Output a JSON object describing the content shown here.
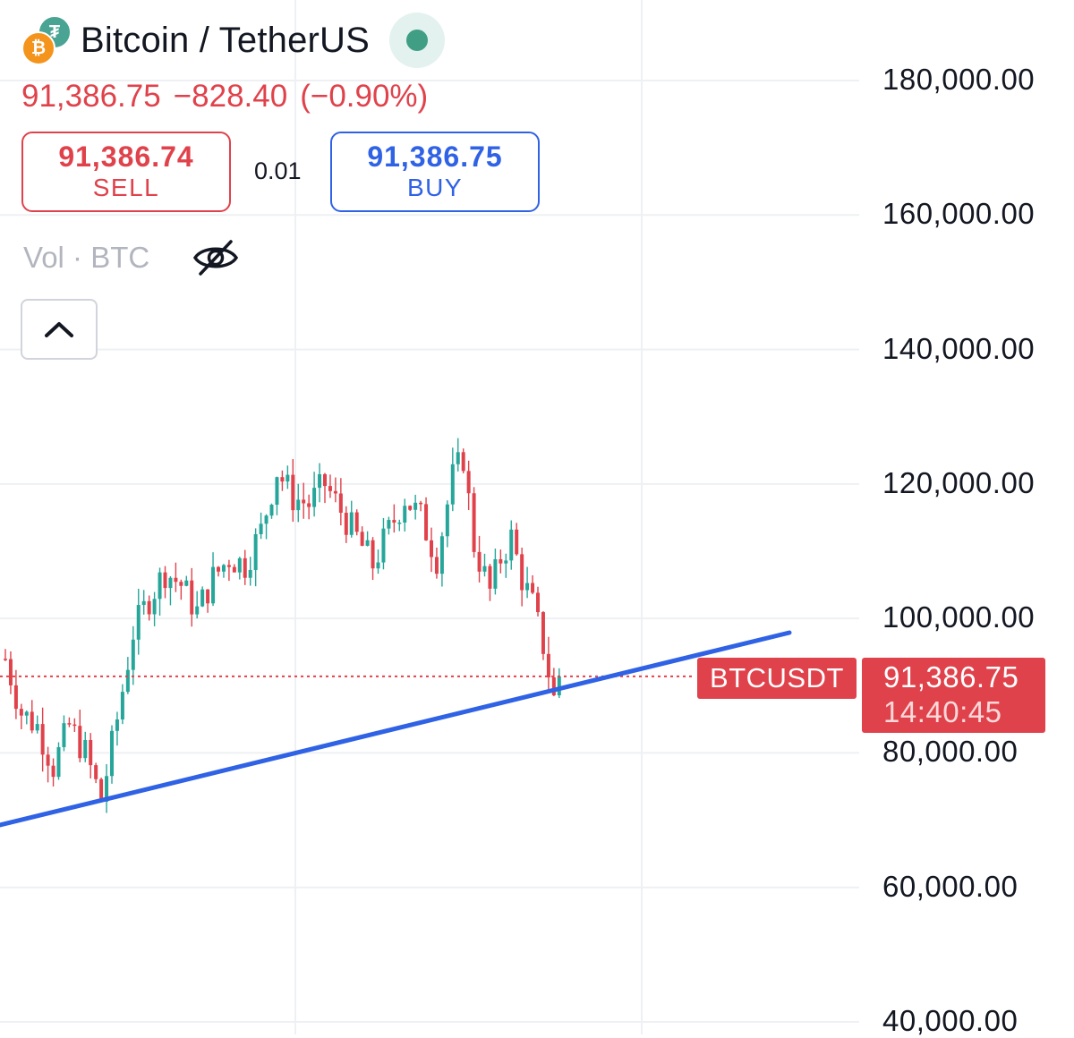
{
  "header": {
    "symbol_title": "Bitcoin / TetherUS",
    "last_price": "91,386.75",
    "change": "−828.40",
    "change_pct": "(−0.90%)",
    "sell_price": "91,386.74",
    "sell_label": "SELL",
    "spread": "0.01",
    "buy_price": "91,386.75",
    "buy_label": "BUY",
    "volume_label": "Vol · BTC",
    "icons": {
      "coin_base": "bitcoin-icon",
      "coin_quote": "tether-icon",
      "status": "market-open-dot-icon",
      "visibility": "eye-off-icon",
      "collapse": "chevron-up-icon"
    }
  },
  "price_tag": {
    "symbol": "BTCUSDT",
    "value": "91,386.75",
    "countdown": "14:40:45"
  },
  "colors": {
    "up": "#26a69a",
    "down": "#e0424b",
    "trendline": "#2f62e4",
    "status_dot": "#3f9e84"
  },
  "chart_data": {
    "type": "candlestick",
    "y_axis": {
      "position": "right",
      "ylim": [
        40000,
        180000
      ],
      "ticks": [
        "40,000.00",
        "60,000.00",
        "80,000.00",
        "100,000.00",
        "120,000.00",
        "140,000.00",
        "160,000.00",
        "180,000.00"
      ]
    },
    "grid": true,
    "current_price": 91386.75,
    "approx_close_path": [
      [
        0,
        94000
      ],
      [
        3,
        86000
      ],
      [
        6,
        84000
      ],
      [
        9,
        78000
      ],
      [
        12,
        84000
      ],
      [
        15,
        80000
      ],
      [
        18,
        73000
      ],
      [
        21,
        85000
      ],
      [
        24,
        98000
      ],
      [
        27,
        103000
      ],
      [
        30,
        107000
      ],
      [
        33,
        105000
      ],
      [
        36,
        101000
      ],
      [
        39,
        106000
      ],
      [
        42,
        109000
      ],
      [
        45,
        108000
      ],
      [
        48,
        113000
      ],
      [
        51,
        122000
      ],
      [
        54,
        118000
      ],
      [
        57,
        117000
      ],
      [
        60,
        120000
      ],
      [
        63,
        116000
      ],
      [
        66,
        112000
      ],
      [
        69,
        108000
      ],
      [
        72,
        113000
      ],
      [
        75,
        118000
      ],
      [
        78,
        115000
      ],
      [
        81,
        109000
      ],
      [
        84,
        121000
      ],
      [
        86,
        124000
      ],
      [
        88,
        111000
      ],
      [
        91,
        104000
      ],
      [
        93,
        109000
      ],
      [
        95,
        112000
      ],
      [
        97,
        106000
      ],
      [
        99,
        102000
      ],
      [
        101,
        96000
      ],
      [
        103,
        88000
      ],
      [
        104,
        91386
      ]
    ],
    "trendline": [
      [
        -40,
        68000
      ],
      [
        114,
        98000
      ]
    ]
  }
}
